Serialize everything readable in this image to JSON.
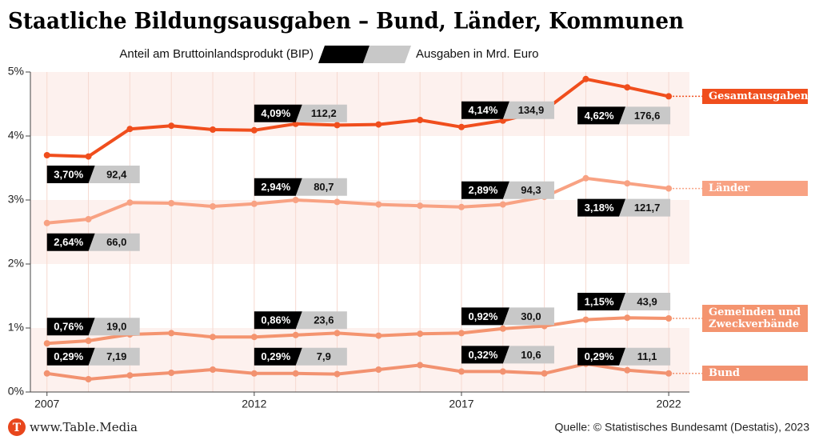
{
  "title": "Staatliche Bildungsausgaben – Bund, Länder, Kommunen",
  "legend": {
    "share": "Anteil am Bruttoinlandsprodukt (BIP)",
    "amount": "Ausgaben in Mrd. Euro"
  },
  "footer": {
    "site": "www.Table.Media",
    "logo": "T",
    "source": "Quelle: © Statistisches Bundesamt (Destatis), 2023"
  },
  "chart_data": {
    "type": "line",
    "x": [
      2007,
      2008,
      2009,
      2010,
      2011,
      2012,
      2013,
      2014,
      2015,
      2016,
      2017,
      2018,
      2019,
      2020,
      2021,
      2022
    ],
    "xlim": [
      2006.6,
      2022.5
    ],
    "xticks": [
      2007,
      2012,
      2017,
      2022
    ],
    "ylim": [
      0,
      5
    ],
    "yticks": [
      {
        "value": 0,
        "label": "0%"
      },
      {
        "value": 1,
        "label": "1%"
      },
      {
        "value": 2,
        "label": "2%"
      },
      {
        "value": 3,
        "label": "3%"
      },
      {
        "value": 4,
        "label": "4%"
      },
      {
        "value": 5,
        "label": "5%"
      }
    ],
    "grid": true,
    "series": [
      {
        "name": "Gesamtausgaben",
        "color": "#f04e1d",
        "values": [
          3.7,
          3.68,
          4.11,
          4.16,
          4.1,
          4.09,
          4.19,
          4.17,
          4.18,
          4.25,
          4.14,
          4.24,
          4.4,
          4.89,
          4.76,
          4.62
        ],
        "value_labels": [
          "3,70%",
          null,
          null,
          null,
          null,
          "4,09%",
          null,
          null,
          null,
          null,
          "4,14%",
          null,
          null,
          null,
          null,
          "4,62%"
        ],
        "amounts": [
          92.4,
          null,
          null,
          null,
          null,
          112.2,
          null,
          null,
          null,
          null,
          134.9,
          null,
          null,
          null,
          null,
          176.6
        ],
        "amount_labels": [
          "92,4",
          null,
          null,
          null,
          null,
          "112,2",
          null,
          null,
          null,
          null,
          "134,9",
          null,
          null,
          null,
          null,
          "176,6"
        ]
      },
      {
        "name": "Länder",
        "color": "#f8a283",
        "values": [
          2.64,
          2.7,
          2.96,
          2.95,
          2.9,
          2.94,
          3.0,
          2.97,
          2.93,
          2.91,
          2.89,
          2.93,
          3.05,
          3.34,
          3.26,
          3.18
        ],
        "value_labels": [
          "2,64%",
          null,
          null,
          null,
          null,
          "2,94%",
          null,
          null,
          null,
          null,
          "2,89%",
          null,
          null,
          null,
          null,
          "3,18%"
        ],
        "amounts": [
          66.0,
          null,
          null,
          null,
          null,
          80.7,
          null,
          null,
          null,
          null,
          94.3,
          null,
          null,
          null,
          null,
          121.7
        ],
        "amount_labels": [
          "66,0",
          null,
          null,
          null,
          null,
          "80,7",
          null,
          null,
          null,
          null,
          "94,3",
          null,
          null,
          null,
          null,
          "121,7"
        ]
      },
      {
        "name": "Gemeinden und Zweckverbände",
        "color": "#f4946f",
        "values": [
          0.76,
          0.8,
          0.9,
          0.92,
          0.86,
          0.86,
          0.89,
          0.92,
          0.88,
          0.91,
          0.92,
          0.99,
          1.03,
          1.13,
          1.16,
          1.15
        ],
        "value_labels": [
          "0,76%",
          null,
          null,
          null,
          null,
          "0,86%",
          null,
          null,
          null,
          null,
          "0,92%",
          null,
          null,
          null,
          null,
          "1,15%"
        ],
        "amounts": [
          19.0,
          null,
          null,
          null,
          null,
          23.6,
          null,
          null,
          null,
          null,
          30.0,
          null,
          null,
          null,
          null,
          43.9
        ],
        "amount_labels": [
          "19,0",
          null,
          null,
          null,
          null,
          "23,6",
          null,
          null,
          null,
          null,
          "30,0",
          null,
          null,
          null,
          null,
          "43,9"
        ]
      },
      {
        "name": "Bund",
        "color": "#f29270",
        "values": [
          0.29,
          0.2,
          0.26,
          0.3,
          0.35,
          0.29,
          0.29,
          0.28,
          0.35,
          0.42,
          0.32,
          0.32,
          0.29,
          0.44,
          0.34,
          0.29
        ],
        "value_labels": [
          "0,29%",
          null,
          null,
          null,
          null,
          "0,29%",
          null,
          null,
          null,
          null,
          "0,32%",
          null,
          null,
          null,
          null,
          "0,29%"
        ],
        "amounts": [
          7.19,
          null,
          null,
          null,
          null,
          7.9,
          null,
          null,
          null,
          null,
          10.6,
          null,
          null,
          null,
          null,
          11.1
        ],
        "amount_labels": [
          "7,19",
          null,
          null,
          null,
          null,
          "7,9",
          null,
          null,
          null,
          null,
          "10,6",
          null,
          null,
          null,
          null,
          "11,1"
        ]
      }
    ]
  }
}
